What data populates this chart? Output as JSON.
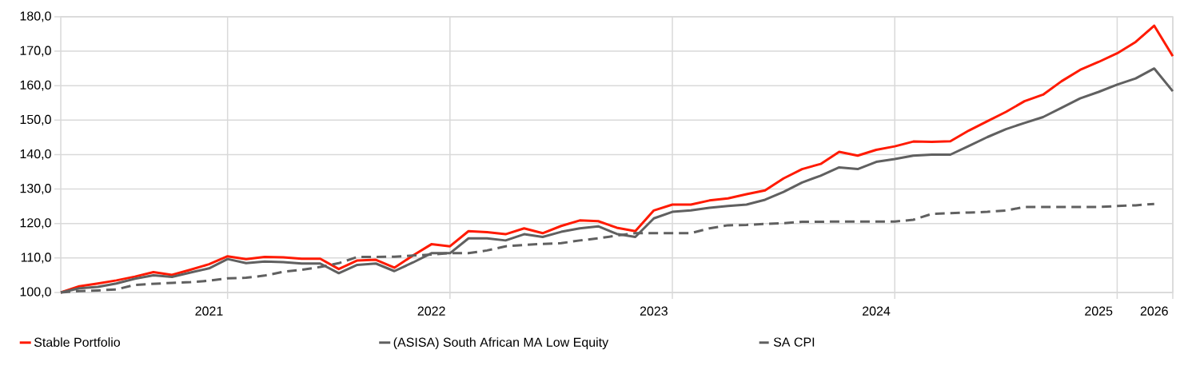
{
  "chart_data": {
    "type": "line",
    "categories": [
      null,
      null,
      null,
      null,
      null,
      null,
      null,
      null,
      "2021",
      null,
      null,
      null,
      null,
      null,
      null,
      null,
      null,
      null,
      null,
      null,
      "2022",
      null,
      null,
      null,
      null,
      null,
      null,
      null,
      null,
      null,
      null,
      null,
      "2023",
      null,
      null,
      null,
      null,
      null,
      null,
      null,
      null,
      null,
      null,
      null,
      "2024",
      null,
      null,
      null,
      null,
      null,
      null,
      null,
      null,
      null,
      null,
      null,
      "2025",
      null,
      null,
      "2026",
      null
    ],
    "series": [
      {
        "name": "Stable Portfolio",
        "color": "#ff1a00",
        "values": [
          100,
          101.8,
          102.6,
          103.5,
          104.6,
          105.9,
          105.1,
          106.6,
          108.2,
          110.5,
          109.7,
          110.3,
          110.2,
          109.8,
          109.8,
          106.8,
          109.3,
          109.5,
          107.2,
          110.7,
          114.0,
          113.4,
          117.8,
          117.5,
          116.9,
          118.6,
          117.2,
          119.3,
          120.9,
          120.7,
          118.8,
          117.8,
          123.8,
          125.5,
          125.5,
          126.7,
          127.3,
          128.5,
          129.6,
          133.1,
          135.8,
          137.3,
          140.8,
          139.7,
          141.4,
          142.4,
          143.8,
          143.7,
          143.9,
          147.0,
          149.7,
          152.4,
          155.5,
          157.4,
          161.3,
          164.6,
          166.9,
          169.4,
          172.7,
          177.4,
          168.6
        ]
      },
      {
        "name": "(ASISA) South African MA Low Equity",
        "color": "#606060",
        "values": [
          100,
          101.2,
          101.6,
          102.6,
          104.0,
          105.0,
          104.5,
          105.8,
          107.0,
          109.7,
          108.5,
          109.0,
          108.8,
          108.4,
          108.4,
          105.6,
          108.0,
          108.4,
          106.2,
          108.7,
          111.4,
          111.4,
          115.7,
          115.7,
          115.1,
          116.9,
          116.1,
          117.6,
          118.6,
          119.2,
          117.0,
          116.1,
          121.5,
          123.4,
          123.8,
          124.6,
          125.1,
          125.5,
          126.9,
          129.2,
          131.9,
          133.9,
          136.3,
          135.8,
          137.9,
          138.7,
          139.7,
          140.0,
          140.0,
          142.5,
          145.1,
          147.4,
          149.2,
          150.9,
          153.6,
          156.3,
          158.2,
          160.3,
          162.1,
          165.0,
          158.4
        ]
      },
      {
        "name": "SA CPI",
        "color": "#606060",
        "line_style": "dashed",
        "values": [
          100,
          100.4,
          100.6,
          100.9,
          102.2,
          102.5,
          102.8,
          103.0,
          103.4,
          104.1,
          104.3,
          104.9,
          106.0,
          106.6,
          107.4,
          108.5,
          110.3,
          110.3,
          110.4,
          110.7,
          111.0,
          111.4,
          111.4,
          112.2,
          113.4,
          113.8,
          114.1,
          114.3,
          115.1,
          115.7,
          116.5,
          117.2,
          117.2,
          117.2,
          117.2,
          118.6,
          119.5,
          119.6,
          119.9,
          120.1,
          120.5,
          120.5,
          120.6,
          120.6,
          120.6,
          120.6,
          121.1,
          122.8,
          123.0,
          123.2,
          123.4,
          123.8,
          124.8,
          124.8,
          124.8,
          124.8,
          124.8,
          125.1,
          125.3,
          125.7,
          null
        ]
      }
    ],
    "ylim": [
      100,
      180
    ],
    "yticks": [
      {
        "value": 100,
        "label": "100,0"
      },
      {
        "value": 110,
        "label": "110,0"
      },
      {
        "value": 120,
        "label": "120,0"
      },
      {
        "value": 130,
        "label": "130,0"
      },
      {
        "value": 140,
        "label": "140,0"
      },
      {
        "value": 150,
        "label": "150,0"
      },
      {
        "value": 160,
        "label": "160,0"
      },
      {
        "value": 170,
        "label": "170,0"
      },
      {
        "value": 180,
        "label": "180,0"
      }
    ],
    "grid": true,
    "legend": "bottom",
    "marker": "none",
    "line_style": "solid"
  }
}
